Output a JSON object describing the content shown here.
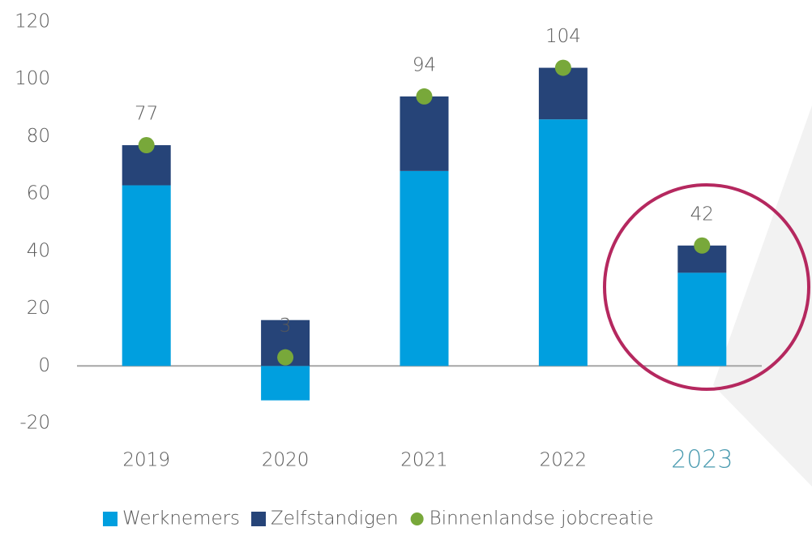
{
  "chart_data": {
    "type": "stacked_bar",
    "categories": [
      "2019",
      "2020",
      "2021",
      "2022",
      "2023"
    ],
    "series": [
      {
        "name": "Werknemers",
        "color": "#009fdf",
        "values": [
          63,
          -12,
          68,
          86,
          32.5
        ]
      },
      {
        "name": "Zelfstandigen",
        "color": "#264478",
        "values": [
          14,
          16,
          26,
          18,
          9.5
        ]
      },
      {
        "name": "Binnenlandse jobcreatie",
        "color": "#78a83a",
        "kind": "dot",
        "values": [
          77,
          3,
          94,
          104,
          42
        ]
      }
    ],
    "ylim": [
      -20,
      120
    ],
    "yticks": [
      -20,
      0,
      20,
      40,
      60,
      80,
      100,
      120
    ],
    "grid": false,
    "legend": "bottom"
  }
}
